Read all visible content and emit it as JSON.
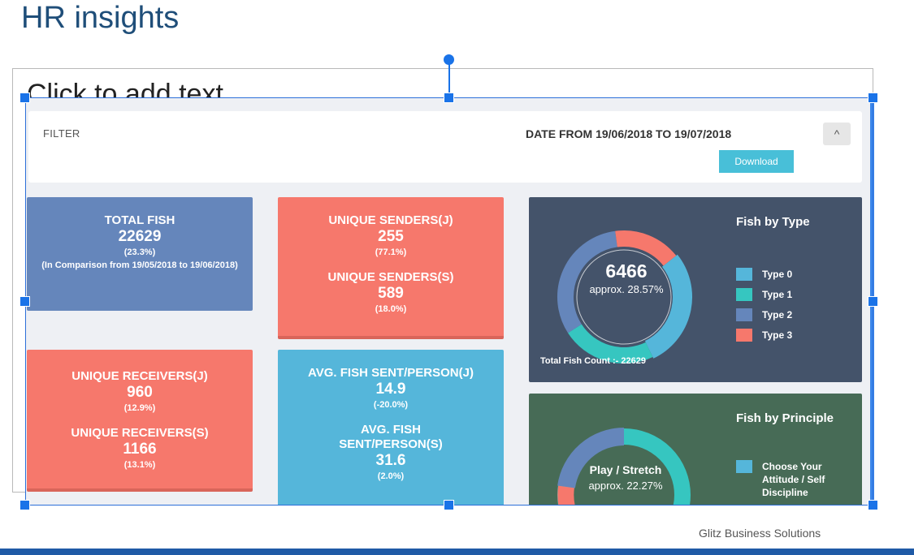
{
  "slide": {
    "title": "HR insights",
    "placeholder": "Click to add text",
    "footer": "Glitz Business Solutions"
  },
  "filter": {
    "label": "FILTER",
    "date_range": "DATE FROM 19/06/2018 TO 19/07/2018",
    "collapse_icon": "chevron-up-icon",
    "collapse_glyph": "^",
    "download_label": "Download"
  },
  "cards": {
    "total": {
      "label": "TOTAL FISH",
      "value": "22629",
      "pct": "(23.3%)",
      "note": "(In Comparison from 19/05/2018 to 19/06/2018)"
    },
    "senders": {
      "j_label": "UNIQUE SENDERS(J)",
      "j_value": "255",
      "j_pct": "(77.1%)",
      "s_label": "UNIQUE SENDERS(S)",
      "s_value": "589",
      "s_pct": "(18.0%)"
    },
    "receivers": {
      "j_label": "UNIQUE RECEIVERS(J)",
      "j_value": "960",
      "j_pct": "(12.9%)",
      "s_label": "UNIQUE RECEIVERS(S)",
      "s_value": "1166",
      "s_pct": "(13.1%)"
    },
    "avg": {
      "j_label": "AVG. FISH SENT/PERSON(J)",
      "j_value": "14.9",
      "j_pct": "(-20.0%)",
      "s_label": "AVG. FISH SENT/PERSON(S)",
      "s_value": "31.6",
      "s_pct": "(2.0%)"
    }
  },
  "fish_by_type": {
    "title": "Fish by Type",
    "center_value": "6466",
    "center_sub": "approx. 28.57%",
    "total_count": "Total Fish Count :- 22629",
    "legend": [
      {
        "label": "Type 0",
        "color": "#55b6da"
      },
      {
        "label": "Type 1",
        "color": "#36c6c0"
      },
      {
        "label": "Type 2",
        "color": "#6586bb"
      },
      {
        "label": "Type 3",
        "color": "#f6786c"
      }
    ]
  },
  "fish_by_principle": {
    "title": "Fish by Principle",
    "center_value": "Play / Stretch",
    "center_sub": "approx. 22.27%",
    "legend": [
      {
        "label": "Choose Your Attitude / Self Discipline",
        "color": "#55b6da"
      }
    ]
  },
  "chart_data": [
    {
      "type": "pie",
      "title": "Fish by Type",
      "categories": [
        "Type 0",
        "Type 1",
        "Type 2",
        "Type 3"
      ],
      "values": [
        28.57,
        23,
        32,
        16.43
      ],
      "colors": [
        "#55b6da",
        "#36c6c0",
        "#6586bb",
        "#f6786c"
      ]
    }
  ]
}
